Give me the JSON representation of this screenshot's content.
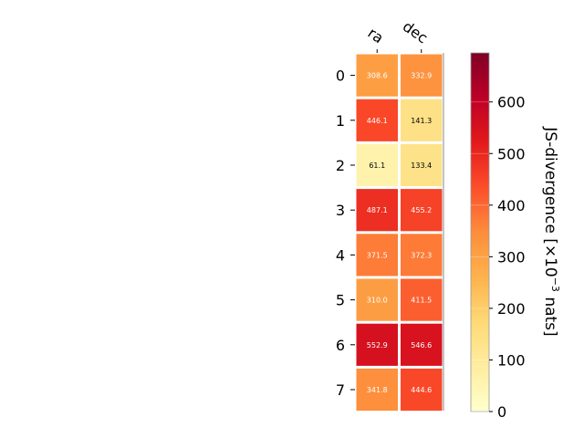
{
  "chart_data": {
    "type": "heatmap",
    "x_categories": [
      "ra",
      "dec"
    ],
    "y_categories": [
      "0",
      "1",
      "2",
      "3",
      "4",
      "5",
      "6",
      "7"
    ],
    "values": [
      [
        308.6,
        332.9
      ],
      [
        446.1,
        141.3
      ],
      [
        61.1,
        133.4
      ],
      [
        487.1,
        455.2
      ],
      [
        371.5,
        372.3
      ],
      [
        310.0,
        411.5
      ],
      [
        552.9,
        546.6
      ],
      [
        341.8,
        444.6
      ]
    ],
    "value_labels": [
      [
        "308.6",
        "332.9"
      ],
      [
        "446.1",
        "141.3"
      ],
      [
        "61.1",
        "133.4"
      ],
      [
        "487.1",
        "455.2"
      ],
      [
        "371.5",
        "372.3"
      ],
      [
        "310.0",
        "411.5"
      ],
      [
        "552.9",
        "546.6"
      ],
      [
        "341.8",
        "444.6"
      ]
    ],
    "colorbar": {
      "label_prefix": "JS-divergence [×10",
      "label_exponent": "−3",
      "label_suffix": " nats]",
      "range": [
        0,
        695
      ],
      "ticks": [
        0,
        100,
        200,
        300,
        400,
        500,
        600
      ],
      "tick_labels": [
        "0",
        "100",
        "200",
        "300",
        "400",
        "500",
        "600"
      ],
      "colormap": "YlOrRd"
    },
    "grid": false
  }
}
